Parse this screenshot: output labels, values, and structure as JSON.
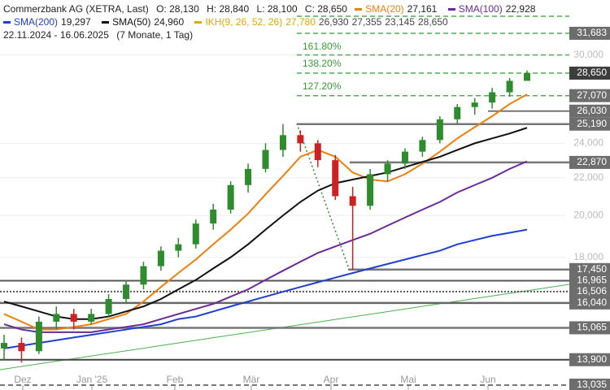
{
  "header": {
    "title": "Commerzbank AG (XETRA, Last)",
    "ohlc": [
      "O: 28,130",
      "H: 28,840",
      "L: 28,100",
      "C: 28,650"
    ],
    "range": "22.11.2024 - 16.06.2025",
    "range_note": "(7 Monate, 1 Tag)"
  },
  "chart_data": {
    "type": "candlestick",
    "open": [
      14.3,
      14.5,
      14.2,
      15.3,
      15.6,
      15.3,
      15.6,
      16.2,
      16.8,
      17.6,
      18.3,
      18.6,
      19.6,
      20.3,
      21.6,
      22.5,
      23.6,
      24.5,
      24.0,
      23.0,
      21.0,
      20.5,
      22.2,
      22.8,
      23.5,
      24.2,
      25.5,
      26.3,
      26.6,
      27.3,
      28.1
    ],
    "high": [
      14.8,
      14.7,
      15.5,
      15.9,
      15.8,
      15.8,
      16.4,
      17.0,
      17.8,
      18.5,
      18.9,
      19.8,
      20.6,
      21.8,
      22.8,
      24.0,
      25.2,
      24.8,
      24.2,
      23.3,
      21.5,
      22.5,
      23.0,
      23.7,
      24.4,
      25.7,
      26.5,
      26.9,
      27.6,
      28.3,
      28.84
    ],
    "low": [
      13.9,
      13.8,
      14.1,
      15.0,
      15.0,
      15.2,
      15.5,
      16.0,
      16.6,
      17.4,
      18.0,
      18.4,
      19.3,
      20.1,
      21.2,
      22.3,
      23.2,
      23.5,
      22.6,
      20.8,
      17.45,
      20.3,
      21.8,
      22.5,
      23.2,
      24.0,
      25.2,
      25.8,
      26.2,
      27.0,
      28.1
    ],
    "close": [
      14.5,
      14.2,
      15.3,
      15.6,
      15.3,
      15.6,
      16.2,
      16.8,
      17.6,
      18.3,
      18.6,
      19.6,
      20.3,
      21.6,
      22.5,
      23.6,
      24.5,
      24.0,
      23.0,
      21.0,
      20.5,
      22.2,
      22.8,
      23.5,
      24.2,
      25.5,
      26.3,
      26.6,
      27.3,
      28.1,
      28.65
    ],
    "up_color": "#2e8b2e",
    "down_color": "#cc2222",
    "series": [
      {
        "name": "SMA(20)",
        "last_label": "27,161",
        "color": "#f07f0a",
        "values": [
          15.6,
          15.3,
          15.0,
          15.0,
          15.1,
          15.2,
          15.4,
          15.6,
          16.1,
          16.7,
          17.3,
          17.9,
          18.6,
          19.3,
          20.1,
          21.1,
          22.1,
          23.2,
          23.6,
          23.2,
          22.3,
          21.9,
          21.8,
          22.2,
          22.8,
          23.5,
          24.3,
          25.0,
          25.7,
          26.5,
          27.16
        ]
      },
      {
        "name": "SMA(100)",
        "last_label": "22,928",
        "color": "#6a2a9a",
        "values": [
          15.2,
          15.0,
          14.9,
          14.9,
          14.9,
          14.9,
          15.0,
          15.1,
          15.2,
          15.4,
          15.6,
          15.8,
          16.0,
          16.3,
          16.6,
          17.0,
          17.4,
          17.8,
          18.2,
          18.5,
          18.8,
          19.1,
          19.5,
          19.9,
          20.3,
          20.7,
          21.2,
          21.6,
          22.0,
          22.5,
          22.93
        ]
      },
      {
        "name": "SMA(200)",
        "last_label": "19,297",
        "color": "#1f3fd0",
        "values": [
          14.3,
          14.4,
          14.5,
          14.6,
          14.7,
          14.8,
          14.9,
          15.0,
          15.1,
          15.2,
          15.4,
          15.5,
          15.7,
          15.9,
          16.1,
          16.3,
          16.5,
          16.7,
          16.9,
          17.1,
          17.3,
          17.5,
          17.7,
          17.9,
          18.1,
          18.3,
          18.6,
          18.8,
          19.0,
          19.15,
          19.3
        ]
      },
      {
        "name": "SMA(50)",
        "last_label": "24,960",
        "color": "#111111",
        "values": [
          16.1,
          15.9,
          15.7,
          15.5,
          15.4,
          15.4,
          15.5,
          15.7,
          15.9,
          16.2,
          16.6,
          17.0,
          17.5,
          18.0,
          18.6,
          19.3,
          20.0,
          20.7,
          21.3,
          21.7,
          21.9,
          22.1,
          22.3,
          22.6,
          22.9,
          23.2,
          23.6,
          24.0,
          24.3,
          24.6,
          24.96
        ]
      }
    ],
    "ikh": {
      "name": "IKH(9, 26, 52, 26)",
      "labels": [
        "27,780",
        "26,930",
        "27,355",
        "23,145",
        "28,650"
      ],
      "color": "#e0a800"
    },
    "log_scale": true,
    "ylim": [
      12.876,
      34.46
    ],
    "yticks": [
      {
        "value": 18,
        "label": "18,000"
      },
      {
        "value": 20,
        "label": "20,000"
      },
      {
        "value": 22,
        "label": "22,000"
      },
      {
        "value": 24,
        "label": "24,000"
      },
      {
        "value": 30,
        "label": "30,000"
      }
    ],
    "xlabels": [
      "Dez",
      "Jan '25",
      "Feb",
      "Mär",
      "Apr",
      "Mai",
      "Jun"
    ],
    "levels": [
      {
        "value": 31.683,
        "label": "31,683"
      },
      {
        "value": 28.65,
        "label": "28,650"
      },
      {
        "value": 27.07,
        "label": "27,070"
      },
      {
        "value": 26.03,
        "label": "26,030"
      },
      {
        "value": 25.19,
        "label": "25,190"
      },
      {
        "value": 22.87,
        "label": "22,870"
      },
      {
        "value": 17.45,
        "label": "17,450"
      },
      {
        "value": 16.965,
        "label": "16,965"
      },
      {
        "value": 16.506,
        "label": "16,506"
      },
      {
        "value": 16.04,
        "label": "16,040"
      },
      {
        "value": 15.065,
        "label": "15,065"
      },
      {
        "value": 13.9,
        "label": "13,900"
      },
      {
        "value": 13.035,
        "label": "13,035"
      }
    ],
    "fib_labels": [
      "161.80%",
      "138.20%",
      "127.20%"
    ]
  }
}
